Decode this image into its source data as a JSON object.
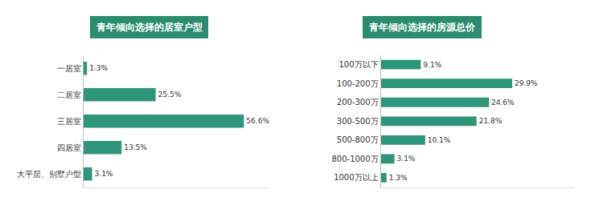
{
  "chart_data": [
    {
      "type": "bar",
      "title": "青年倾向选择的居室户型",
      "orientation": "horizontal",
      "categories": [
        "一居室",
        "二居室",
        "三居室",
        "四居室",
        "大平层、别墅户型"
      ],
      "values": [
        1.3,
        25.5,
        56.6,
        13.5,
        3.1
      ],
      "value_labels": [
        "1.3%",
        "25.5%",
        "56.6%",
        "13.5%",
        "3.1%"
      ],
      "color": "#2f957b",
      "xlim": [
        0,
        65
      ],
      "grid": false,
      "data_labels": true,
      "tick_labels": "y"
    },
    {
      "type": "bar",
      "title": "青年倾向选择的房源总价",
      "orientation": "horizontal",
      "categories": [
        "100万以下",
        "100-200万",
        "200-300万",
        "300-500万",
        "500-800万",
        "800-1000万",
        "1000万以上"
      ],
      "values": [
        9.1,
        29.9,
        24.6,
        21.8,
        10.1,
        3.1,
        1.3
      ],
      "value_labels": [
        "9.1%",
        "29.9%",
        "24.6%",
        "21.8%",
        "10.1%",
        "3.1%",
        "1.3%"
      ],
      "color": "#2f957b",
      "xlim": [
        0,
        44
      ],
      "grid": false,
      "data_labels": true,
      "tick_labels": "y"
    }
  ]
}
